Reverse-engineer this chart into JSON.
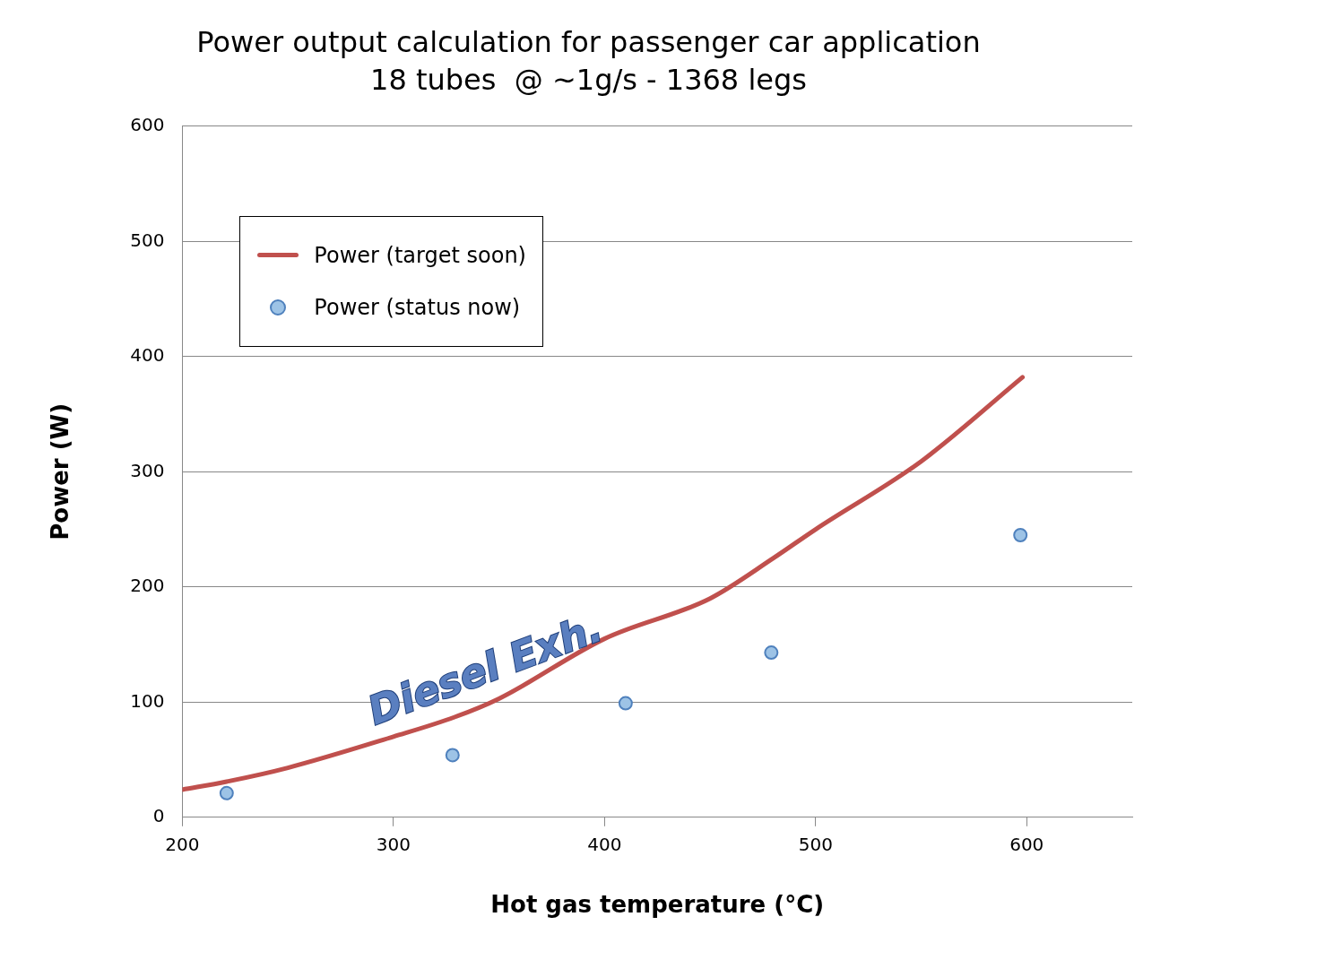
{
  "chart_data": {
    "type": "line",
    "title": "Power output calculation for passenger car application",
    "subtitle": "18 tubes  @ ~1g/s - 1368 legs",
    "xlabel": "Hot gas temperature (°C)",
    "ylabel": "Power (W)",
    "series": [
      {
        "name": "Power (target soon)",
        "color": "#c0504d",
        "x": [
          200,
          221,
          250,
          300,
          329,
          350,
          400,
          450,
          480,
          500,
          550,
          598
        ],
        "values": [
          24,
          31,
          43,
          70,
          87,
          103,
          155,
          190,
          225,
          250,
          309,
          382
        ]
      },
      {
        "name": "Power (status now)",
        "type": "scatter",
        "marker": "circle",
        "color": "#9dc3e6",
        "x": [
          221,
          328,
          410,
          479,
          597
        ],
        "values": [
          21,
          54,
          99,
          143,
          245
        ]
      }
    ],
    "xlim": [
      200,
      650
    ],
    "xticks": [
      200,
      300,
      400,
      500,
      600
    ],
    "ylim": [
      0,
      600
    ],
    "yticks": [
      0,
      100,
      200,
      300,
      400,
      500,
      600
    ],
    "grid": "y",
    "legend": "top left",
    "line_style": "solid",
    "annotations": [
      "Diesel Exh."
    ]
  }
}
